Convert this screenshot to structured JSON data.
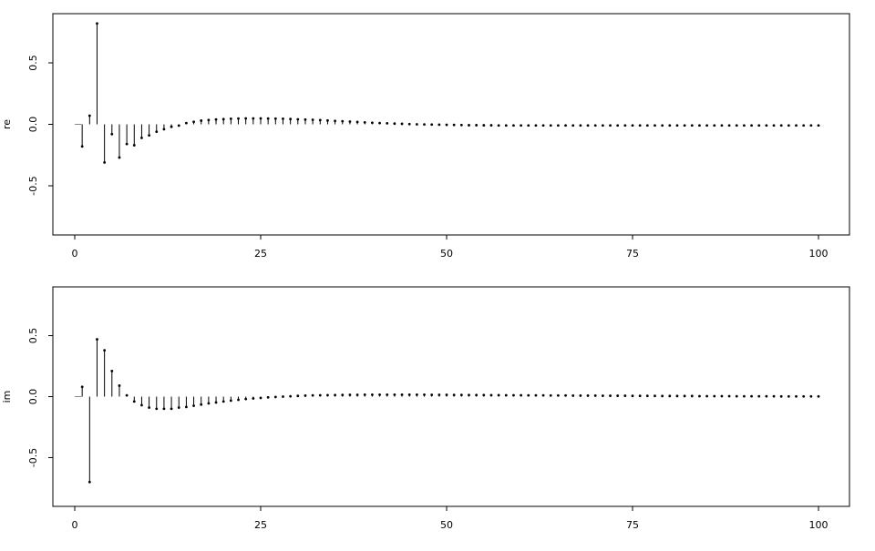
{
  "chart_data": [
    {
      "type": "stem",
      "title": "",
      "xlabel": "",
      "ylabel": "re",
      "xlim": [
        0,
        100
      ],
      "ylim": [
        -0.9,
        0.9
      ],
      "xticks": [
        0,
        25,
        50,
        75,
        100
      ],
      "yticks": [
        0.5,
        0.0,
        -0.5
      ],
      "xtick_labels": [
        "0",
        "25",
        "50",
        "75",
        "100"
      ],
      "ytick_labels": [
        "0.5",
        "0.0",
        "-0.5"
      ],
      "grid": false,
      "x": [
        1,
        2,
        3,
        4,
        5,
        6,
        7,
        8,
        9,
        10,
        11,
        12,
        13,
        14,
        15,
        16,
        17,
        18,
        19,
        20,
        21,
        22,
        23,
        24,
        25,
        26,
        27,
        28,
        29,
        30,
        31,
        32,
        33,
        34,
        35,
        36,
        37,
        38,
        39,
        40,
        41,
        42,
        43,
        44,
        45,
        46,
        47,
        48,
        49,
        50,
        51,
        52,
        53,
        54,
        55,
        56,
        57,
        58,
        59,
        60,
        61,
        62,
        63,
        64,
        65,
        66,
        67,
        68,
        69,
        70,
        71,
        72,
        73,
        74,
        75,
        76,
        77,
        78,
        79,
        80,
        81,
        82,
        83,
        84,
        85,
        86,
        87,
        88,
        89,
        90,
        91,
        92,
        93,
        94,
        95,
        96,
        97,
        98,
        99,
        100
      ],
      "values": [
        -0.18,
        0.07,
        0.82,
        -0.31,
        -0.08,
        -0.27,
        -0.16,
        -0.17,
        -0.11,
        -0.09,
        -0.06,
        -0.04,
        -0.02,
        -0.01,
        0.01,
        0.02,
        0.03,
        0.035,
        0.04,
        0.042,
        0.045,
        0.047,
        0.048,
        0.048,
        0.048,
        0.047,
        0.046,
        0.045,
        0.043,
        0.041,
        0.039,
        0.037,
        0.034,
        0.031,
        0.028,
        0.025,
        0.022,
        0.019,
        0.016,
        0.013,
        0.01,
        0.008,
        0.006,
        0.004,
        0.002,
        0.0,
        -0.001,
        -0.002,
        -0.003,
        -0.004,
        -0.005,
        -0.006,
        -0.007,
        -0.007,
        -0.008,
        -0.008,
        -0.009,
        -0.009,
        -0.009,
        -0.009,
        -0.009,
        -0.009,
        -0.009,
        -0.009,
        -0.009,
        -0.009,
        -0.009,
        -0.009,
        -0.009,
        -0.009,
        -0.009,
        -0.009,
        -0.009,
        -0.009,
        -0.009,
        -0.009,
        -0.009,
        -0.009,
        -0.009,
        -0.009,
        -0.009,
        -0.009,
        -0.009,
        -0.009,
        -0.009,
        -0.009,
        -0.009,
        -0.009,
        -0.009,
        -0.009,
        -0.009,
        -0.009,
        -0.009,
        -0.009,
        -0.009,
        -0.009,
        -0.009,
        -0.009,
        -0.009,
        -0.009
      ]
    },
    {
      "type": "stem",
      "title": "",
      "xlabel": "",
      "ylabel": "im",
      "xlim": [
        0,
        100
      ],
      "ylim": [
        -0.9,
        0.9
      ],
      "xticks": [
        0,
        25,
        50,
        75,
        100
      ],
      "yticks": [
        0.5,
        0.0,
        -0.5
      ],
      "xtick_labels": [
        "0",
        "25",
        "50",
        "75",
        "100"
      ],
      "ytick_labels": [
        "0.5",
        "0.0",
        "-0.5"
      ],
      "grid": false,
      "x": [
        1,
        2,
        3,
        4,
        5,
        6,
        7,
        8,
        9,
        10,
        11,
        12,
        13,
        14,
        15,
        16,
        17,
        18,
        19,
        20,
        21,
        22,
        23,
        24,
        25,
        26,
        27,
        28,
        29,
        30,
        31,
        32,
        33,
        34,
        35,
        36,
        37,
        38,
        39,
        40,
        41,
        42,
        43,
        44,
        45,
        46,
        47,
        48,
        49,
        50,
        51,
        52,
        53,
        54,
        55,
        56,
        57,
        58,
        59,
        60,
        61,
        62,
        63,
        64,
        65,
        66,
        67,
        68,
        69,
        70,
        71,
        72,
        73,
        74,
        75,
        76,
        77,
        78,
        79,
        80,
        81,
        82,
        83,
        84,
        85,
        86,
        87,
        88,
        89,
        90,
        91,
        92,
        93,
        94,
        95,
        96,
        97,
        98,
        99,
        100
      ],
      "values": [
        0.08,
        -0.7,
        0.47,
        0.38,
        0.21,
        0.09,
        0.01,
        -0.04,
        -0.07,
        -0.09,
        -0.1,
        -0.1,
        -0.1,
        -0.09,
        -0.085,
        -0.075,
        -0.065,
        -0.055,
        -0.048,
        -0.04,
        -0.033,
        -0.026,
        -0.02,
        -0.015,
        -0.01,
        -0.006,
        -0.003,
        0.0,
        0.003,
        0.006,
        0.008,
        0.01,
        0.011,
        0.012,
        0.013,
        0.014,
        0.015,
        0.015,
        0.016,
        0.016,
        0.016,
        0.016,
        0.016,
        0.016,
        0.016,
        0.016,
        0.016,
        0.015,
        0.015,
        0.015,
        0.014,
        0.014,
        0.013,
        0.013,
        0.013,
        0.012,
        0.012,
        0.011,
        0.011,
        0.011,
        0.01,
        0.01,
        0.01,
        0.009,
        0.009,
        0.009,
        0.008,
        0.008,
        0.008,
        0.008,
        0.007,
        0.007,
        0.007,
        0.007,
        0.006,
        0.006,
        0.006,
        0.006,
        0.005,
        0.005,
        0.005,
        0.005,
        0.005,
        0.004,
        0.004,
        0.004,
        0.004,
        0.004,
        0.003,
        0.003,
        0.003,
        0.003,
        0.003,
        0.003,
        0.002,
        0.002,
        0.002,
        0.002,
        0.002,
        0.002
      ]
    }
  ]
}
